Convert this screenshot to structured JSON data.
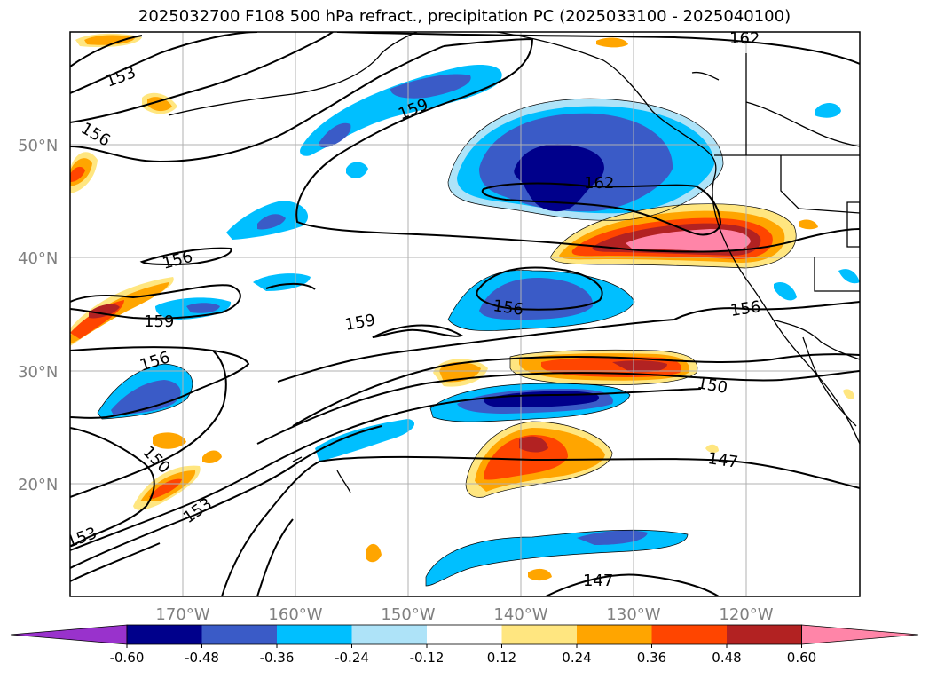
{
  "title": "2025032700 F108 500 hPa refract., precipitation PC (2025033100 - 2025040100)",
  "map": {
    "lat_labels": [
      {
        "value": 50,
        "text": "50°N"
      },
      {
        "value": 40,
        "text": "40°N"
      },
      {
        "value": 30,
        "text": "30°N"
      },
      {
        "value": 20,
        "text": "20°N"
      }
    ],
    "lon_labels": [
      {
        "value": -170,
        "text": "170°W"
      },
      {
        "value": -160,
        "text": "160°W"
      },
      {
        "value": -150,
        "text": "150°W"
      },
      {
        "value": -140,
        "text": "140°W"
      },
      {
        "value": -130,
        "text": "130°W"
      },
      {
        "value": -120,
        "text": "120°W"
      }
    ],
    "lon_range": [
      -180,
      -110
    ],
    "lat_range": [
      10,
      60
    ],
    "grid": true,
    "contour_labels": [
      "162",
      "153",
      "156",
      "159",
      "162",
      "156",
      "159",
      "156",
      "159",
      "156",
      "156",
      "150",
      "150",
      "153",
      "153",
      "147",
      "147"
    ]
  },
  "colorbar": {
    "ticks": [
      "-0.60",
      "-0.48",
      "-0.36",
      "-0.24",
      "-0.12",
      "0.12",
      "0.24",
      "0.36",
      "0.48",
      "0.60"
    ],
    "colors": [
      "#9932cc",
      "#00008b",
      "#3a5bc7",
      "#00bfff",
      "#aee3f8",
      "#ffffff",
      "#ffe680",
      "#ffa500",
      "#ff4500",
      "#b22222",
      "#ff85a8"
    ]
  }
}
